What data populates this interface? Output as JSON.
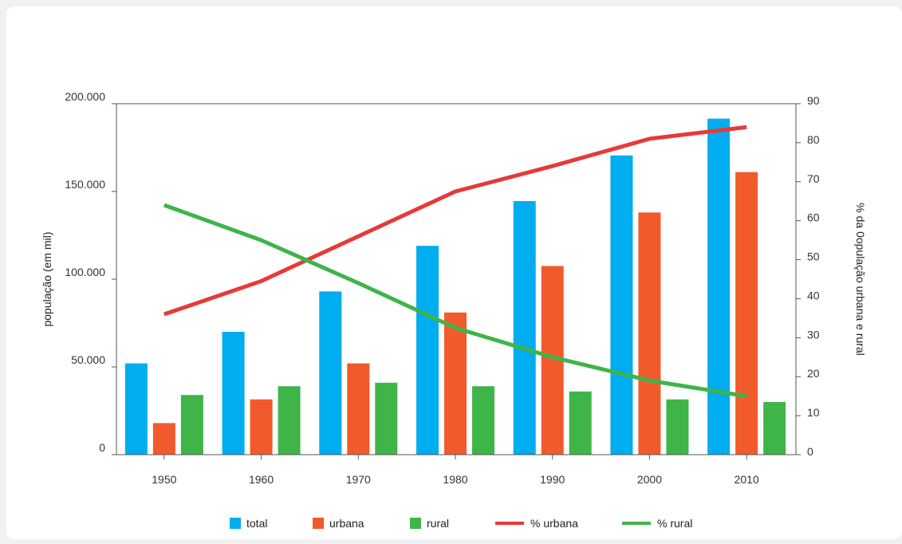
{
  "chart_data": {
    "type": "bar",
    "categories": [
      "1950",
      "1960",
      "1970",
      "1980",
      "1990",
      "2000",
      "2010"
    ],
    "bar_series": [
      {
        "name": "total",
        "color": "#00adef",
        "values": [
          52000,
          70000,
          93000,
          119000,
          144500,
          170500,
          191500
        ]
      },
      {
        "name": "urbana",
        "color": "#f15a2b",
        "values": [
          18000,
          31500,
          52000,
          81000,
          107500,
          138000,
          161000
        ]
      },
      {
        "name": "rural",
        "color": "#3fb449",
        "values": [
          34000,
          39000,
          41000,
          39000,
          36000,
          31500,
          30000
        ]
      }
    ],
    "line_series": [
      {
        "name": "% urbana",
        "color": "#e63a38",
        "values": [
          36,
          44.5,
          56,
          67.5,
          74,
          81,
          84
        ]
      },
      {
        "name": "% rural",
        "color": "#3fb449",
        "values": [
          64,
          55,
          44,
          32.5,
          25,
          19,
          15
        ]
      }
    ],
    "ylabel": "população (em mil)",
    "y2label": "% da 0opulação urbana e rural",
    "ylim": [
      0,
      200000
    ],
    "y2lim": [
      0,
      90
    ],
    "y_ticks": [
      "0",
      "50.000",
      "100.000",
      "150.000",
      "200.000"
    ],
    "y_tick_values": [
      0,
      50000,
      100000,
      150000,
      200000
    ],
    "y2_ticks": [
      "0",
      "10",
      "20",
      "30",
      "40",
      "50",
      "60",
      "70",
      "80",
      "90"
    ],
    "y2_tick_values": [
      0,
      10,
      20,
      30,
      40,
      50,
      60,
      70,
      80,
      90
    ],
    "legend": [
      "total",
      "urbana",
      "rural",
      "% urbana",
      "% rural"
    ],
    "legend_position": "bottom",
    "grid": false
  }
}
